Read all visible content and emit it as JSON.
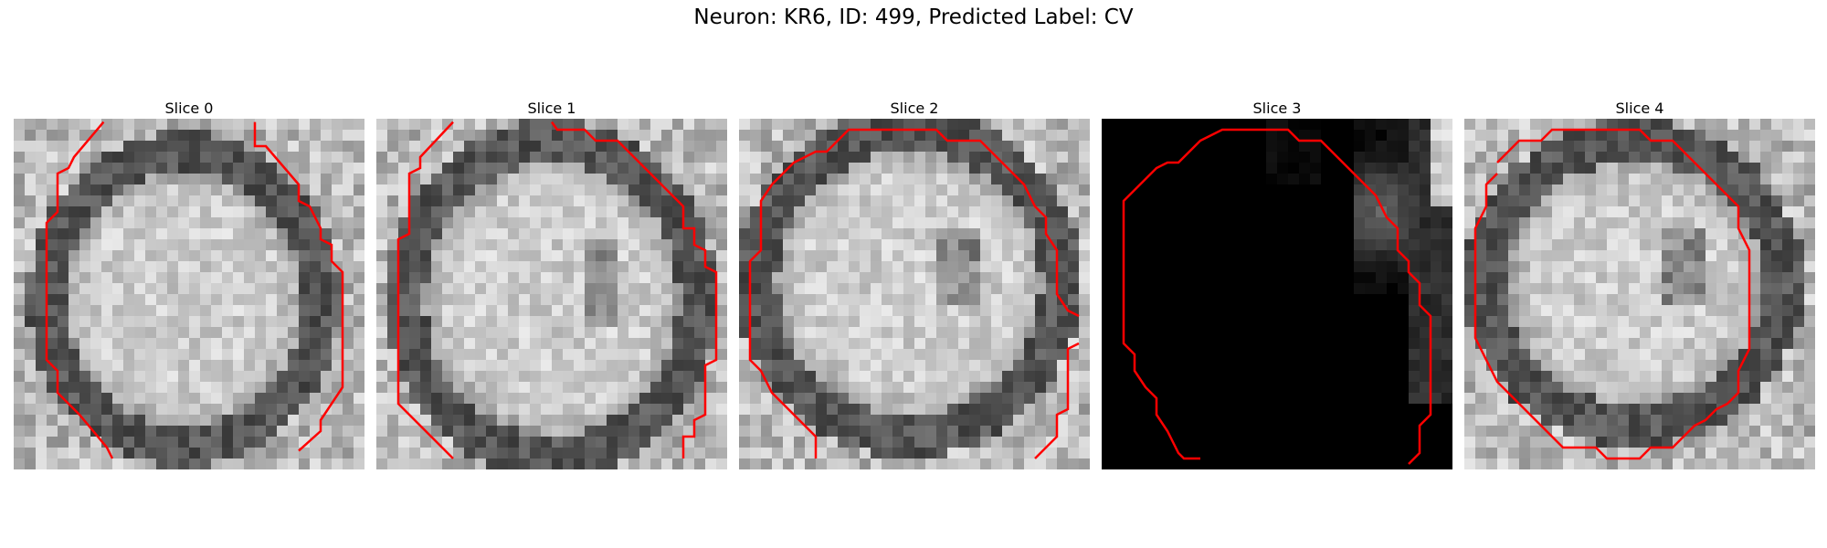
{
  "figure": {
    "suptitle": "Neuron: KR6, ID: 499, Predicted Label: CV"
  },
  "colors": {
    "contour": "#ff0000",
    "background": "#ffffff"
  },
  "slices": [
    {
      "title": "Slice 0",
      "style": "bright"
    },
    {
      "title": "Slice 1",
      "style": "bright"
    },
    {
      "title": "Slice 2",
      "style": "bright"
    },
    {
      "title": "Slice 3",
      "style": "dark"
    },
    {
      "title": "Slice 4",
      "style": "bright"
    }
  ]
}
